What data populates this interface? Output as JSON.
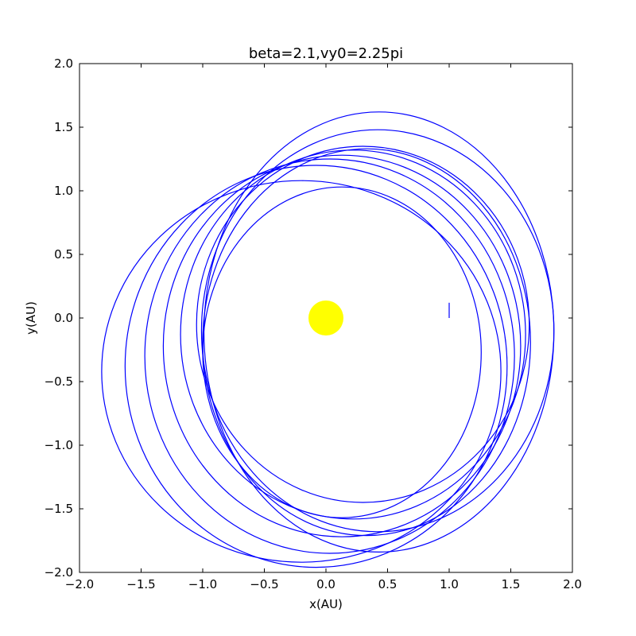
{
  "chart_data": {
    "type": "line",
    "title": "beta=2.1,vy0=2.25pi",
    "xlabel": "x(AU)",
    "ylabel": "y(AU)",
    "xlim": [
      -2.0,
      2.0
    ],
    "ylim": [
      -2.0,
      2.0
    ],
    "xticks": [
      "−2.0",
      "−1.5",
      "−1.0",
      "−0.5",
      "0.0",
      "0.5",
      "1.0",
      "1.5",
      "2.0"
    ],
    "yticks": [
      "−2.0",
      "−1.5",
      "−1.0",
      "−0.5",
      "0.0",
      "0.5",
      "1.0",
      "1.5",
      "2.0"
    ],
    "grid": false,
    "colors": {
      "orbit": "#0000ff",
      "sun": "#ffff00"
    },
    "sun": {
      "x": 0.0,
      "y": 0.0
    },
    "orbit": {
      "start": {
        "x": 1.0,
        "y": 0.0
      },
      "ellipses": [
        {
          "cx": 0.3,
          "cy": -0.05,
          "a": 1.35,
          "b": 1.4
        },
        {
          "cx": 0.22,
          "cy": -0.13,
          "a": 1.4,
          "b": 1.45
        },
        {
          "cx": 0.13,
          "cy": -0.22,
          "a": 1.45,
          "b": 1.5
        },
        {
          "cx": 0.03,
          "cy": -0.3,
          "a": 1.5,
          "b": 1.55
        },
        {
          "cx": -0.08,
          "cy": -0.38,
          "a": 1.55,
          "b": 1.58
        },
        {
          "cx": -0.2,
          "cy": -0.42,
          "a": 1.62,
          "b": 1.5
        },
        {
          "cx": 0.43,
          "cy": -0.11,
          "a": 1.42,
          "b": 1.73
        },
        {
          "cx": 0.42,
          "cy": -0.1,
          "a": 1.43,
          "b": 1.58
        },
        {
          "cx": 0.33,
          "cy": -0.19,
          "a": 1.33,
          "b": 1.52
        },
        {
          "cx": 0.13,
          "cy": -0.27,
          "a": 1.13,
          "b": 1.3
        }
      ]
    }
  }
}
